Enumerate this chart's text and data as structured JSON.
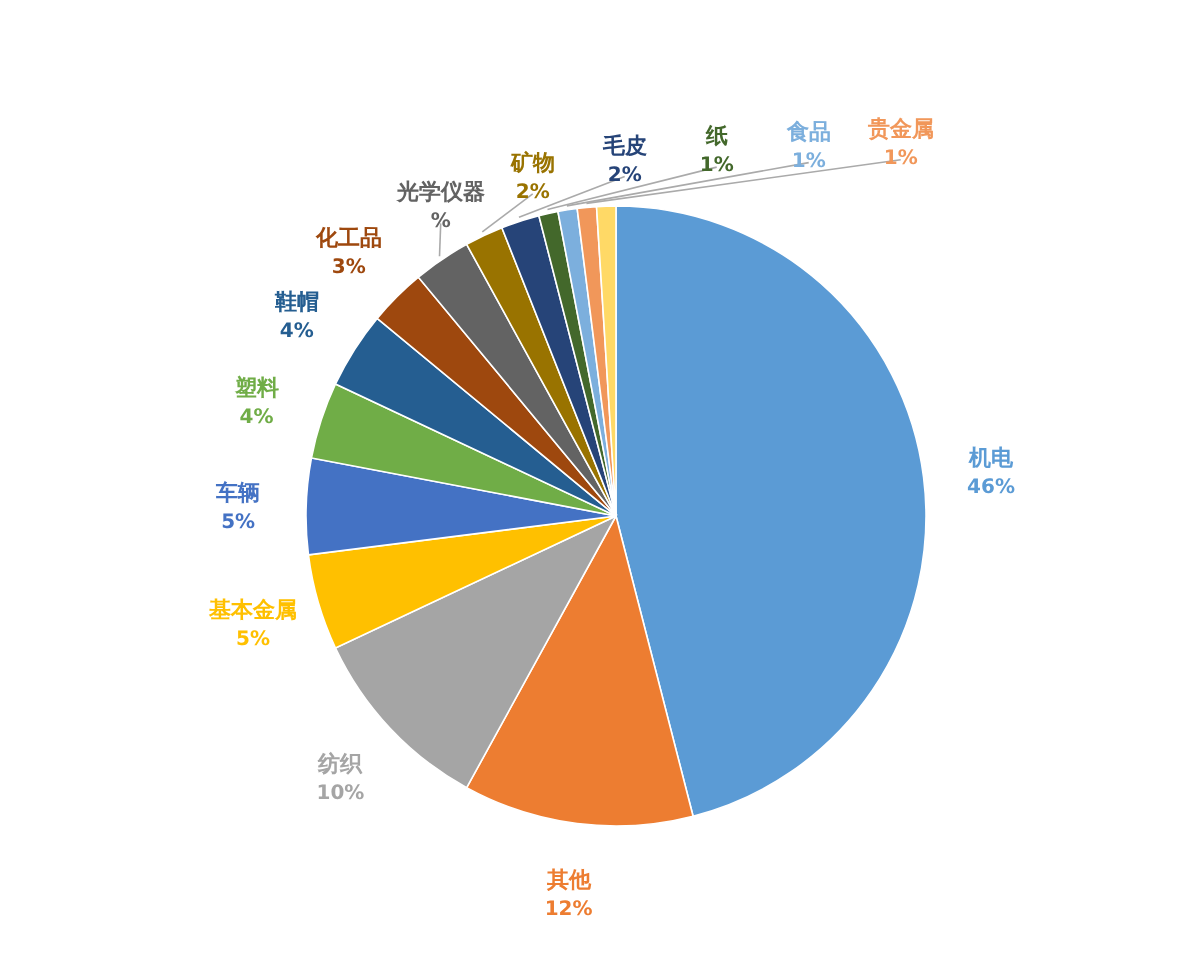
{
  "chart_data": {
    "type": "pie",
    "categories": [
      "机电",
      "其他",
      "纺织",
      "基本金属",
      "车辆",
      "塑料",
      "鞋帽",
      "化工品",
      "光学仪器",
      "矿物",
      "毛皮",
      "纸",
      "食品",
      "贵金属",
      null
    ],
    "values": [
      46,
      12,
      10,
      5,
      5,
      4,
      4,
      3,
      3,
      2,
      2,
      1,
      1,
      1,
      1
    ],
    "value_labels": [
      "46%",
      "12%",
      "10%",
      "5%",
      "5%",
      "4%",
      "4%",
      "3%",
      "%",
      "2%",
      "2%",
      "1%",
      "1%",
      "1%",
      null
    ],
    "colors": [
      "#5b9bd5",
      "#ed7d31",
      "#a5a5a5",
      "#ffc000",
      "#4472c4",
      "#70ad47",
      "#255e91",
      "#9e480e",
      "#636363",
      "#997300",
      "#264478",
      "#43682b",
      "#7cafdd",
      "#f1975a",
      "#ffd966"
    ]
  }
}
